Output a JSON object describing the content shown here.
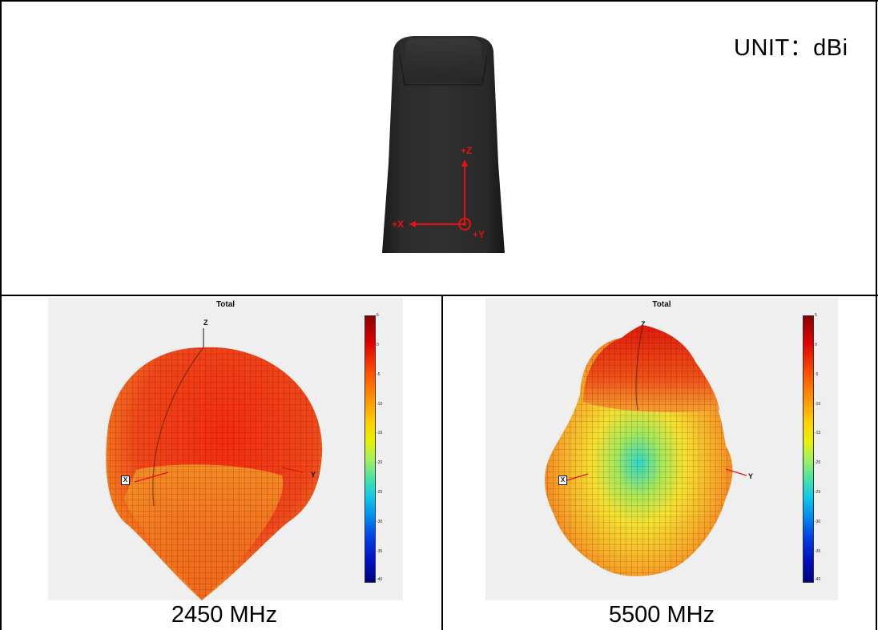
{
  "header": {
    "unit_label": "UNIT：dBi"
  },
  "antenna_photo": {
    "axis_z": "+Z",
    "axis_x": "+X",
    "axis_y": "+Y",
    "axis_color": "#e81010"
  },
  "plots": [
    {
      "title": "Total",
      "z_label": "Z",
      "x_label": "X",
      "y_label": "Y",
      "colorbar_ticks": [
        "5",
        "0",
        "-5",
        "-10",
        "-15",
        "-20",
        "-25",
        "-30",
        "-35",
        "-40"
      ],
      "frequency_label": "2450 MHz"
    },
    {
      "title": "Total",
      "z_label": "Z",
      "x_label": "X",
      "y_label": "Y",
      "colorbar_ticks": [
        "5",
        "0",
        "-5",
        "-10",
        "-15",
        "-20",
        "-25",
        "-30",
        "-35",
        "-40"
      ],
      "frequency_label": "5500 MHz"
    }
  ]
}
